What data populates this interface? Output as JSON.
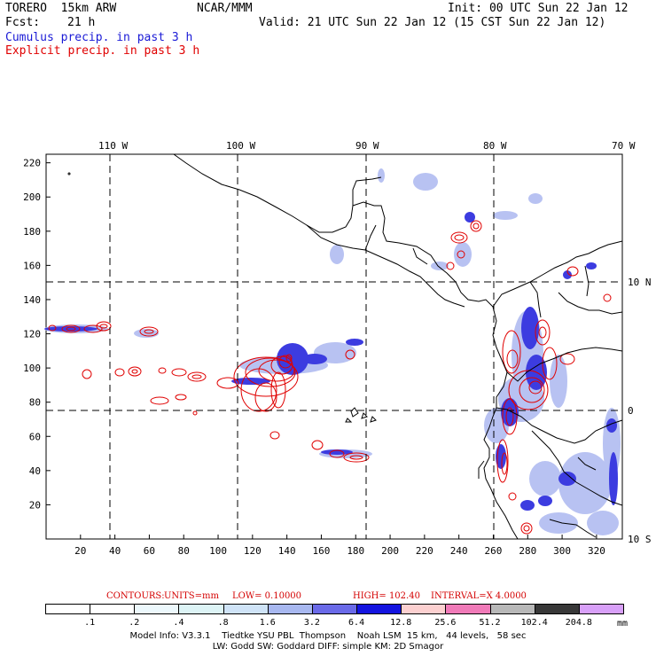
{
  "header": {
    "model": "TORERO  15km ARW",
    "org": "NCAR/MMM",
    "init": "Init: 00 UTC Sun 22 Jan 12",
    "fcst_label": "Fcst:",
    "fcst_value": "21 h",
    "valid": "Valid: 21 UTC Sun 22 Jan 12 (15 CST Sun 22 Jan 12)",
    "legend_cumulus": "Cumulus precip. in past 3 h",
    "legend_explicit": "Explicit precip. in past 3 h"
  },
  "map": {
    "lon_labels": [
      "110 W",
      "100 W",
      "90 W",
      "80 W",
      "70 W"
    ],
    "lat_labels": [
      "10 N",
      "0",
      "10 S"
    ],
    "y_ticks": [
      "20",
      "40",
      "60",
      "80",
      "100",
      "120",
      "140",
      "160",
      "180",
      "200",
      "220"
    ],
    "x_ticks": [
      "20",
      "40",
      "60",
      "80",
      "100",
      "120",
      "140",
      "160",
      "180",
      "200",
      "220",
      "240",
      "260",
      "280",
      "300",
      "320"
    ],
    "colors": {
      "cumulus": "#1a1ad6",
      "explicit": "#e00000",
      "coast": "#000000"
    }
  },
  "contours": {
    "label": "CONTOURS:",
    "units": "UNITS=mm",
    "low": "LOW= 0.10000",
    "high": "HIGH= 102.40",
    "interval": "INTERVAL=X 4.0000"
  },
  "colorbar": {
    "labels": [
      ".1",
      ".2",
      ".4",
      ".8",
      "1.6",
      "3.2",
      "6.4",
      "12.8",
      "25.6",
      "51.2",
      "102.4",
      "204.8"
    ],
    "unit": "mm",
    "colors": [
      "#ffffff",
      "#ffffff",
      "#ecf8fc",
      "#ddf4f6",
      "#cfe3f7",
      "#a8b8f0",
      "#6a6ae8",
      "#1414e0",
      "#fcd0d0",
      "#f07ab8",
      "#b8b8b8",
      "#383838",
      "#d8a0f8"
    ]
  },
  "footer": {
    "line1": "Model Info: V3.3.1    Tiedtke YSU PBL  Thompson    Noah LSM  15 km,   44 levels,   58 sec",
    "line2": "LW: Godd SW: Goddard DIFF: simple KM: 2D Smagor"
  }
}
